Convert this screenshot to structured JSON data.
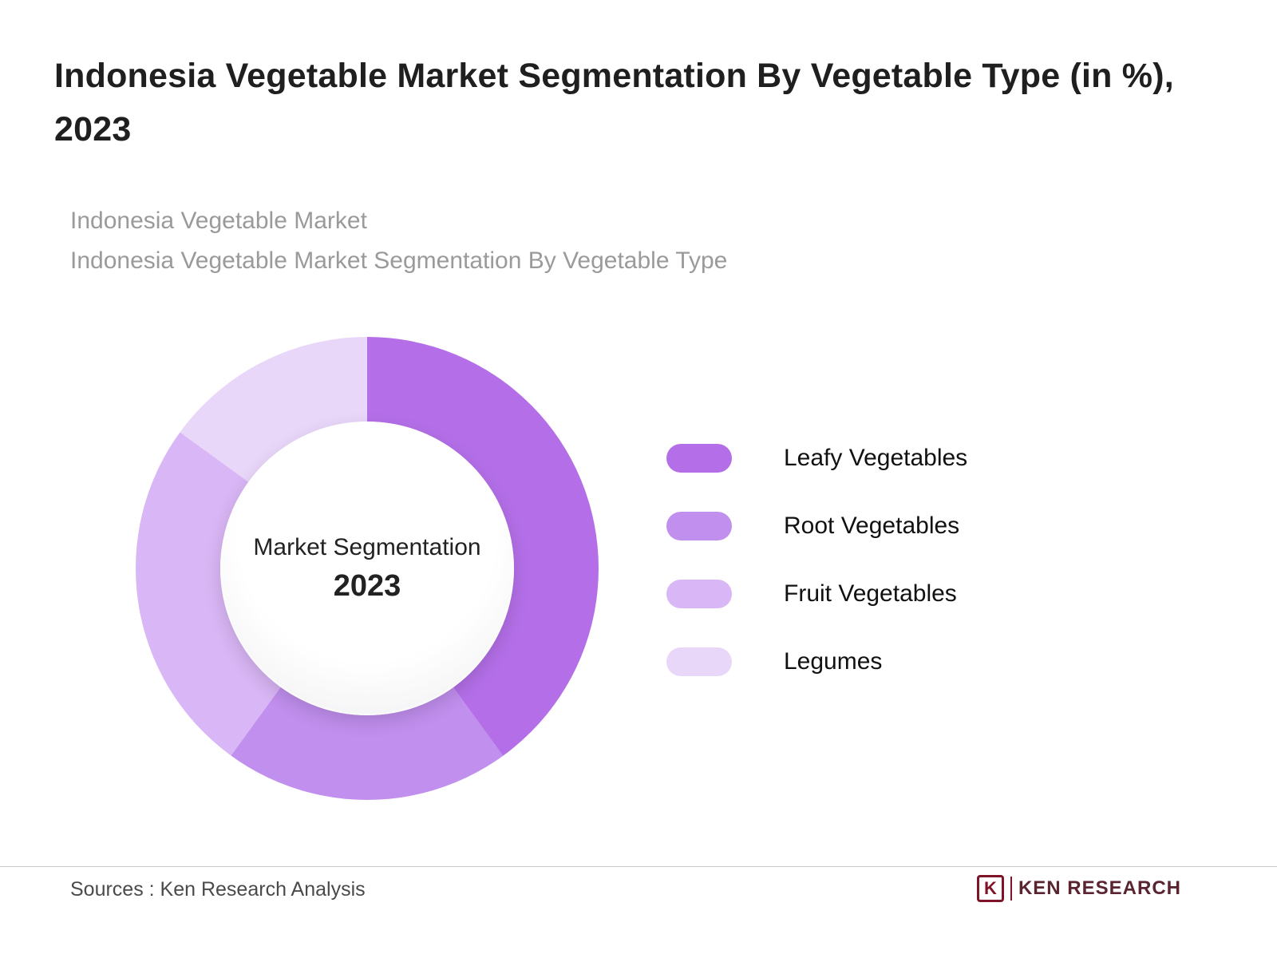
{
  "page": {
    "title": "Indonesia Vegetable Market Segmentation By Vegetable Type (in %), 2023",
    "subtitle_line1": "Indonesia Vegetable Market",
    "subtitle_line2": "Indonesia Vegetable Market Segmentation By Vegetable Type"
  },
  "chart_data": {
    "type": "pie",
    "donut": true,
    "title": "Indonesia Vegetable Market Segmentation By Vegetable Type (in %), 2023",
    "categories": [
      "Leafy Vegetables",
      "Root Vegetables",
      "Fruit Vegetables",
      "Legumes"
    ],
    "values": [
      40,
      20,
      25,
      15
    ],
    "values_estimated_from_arc_angles": true,
    "values_shown_on_chart": false,
    "colors": [
      "#b46fe8",
      "#c18fee",
      "#d9b6f5",
      "#e9d7fa"
    ],
    "start_angle_deg": 0,
    "direction": "clockwise",
    "legend_position": "right",
    "center_label_line1": "Market Segmentation",
    "center_label_line2": "2023"
  },
  "footer": {
    "sources": "Sources : Ken Research Analysis",
    "brand_mark": "K",
    "brand_text": "KEN RESEARCH"
  }
}
